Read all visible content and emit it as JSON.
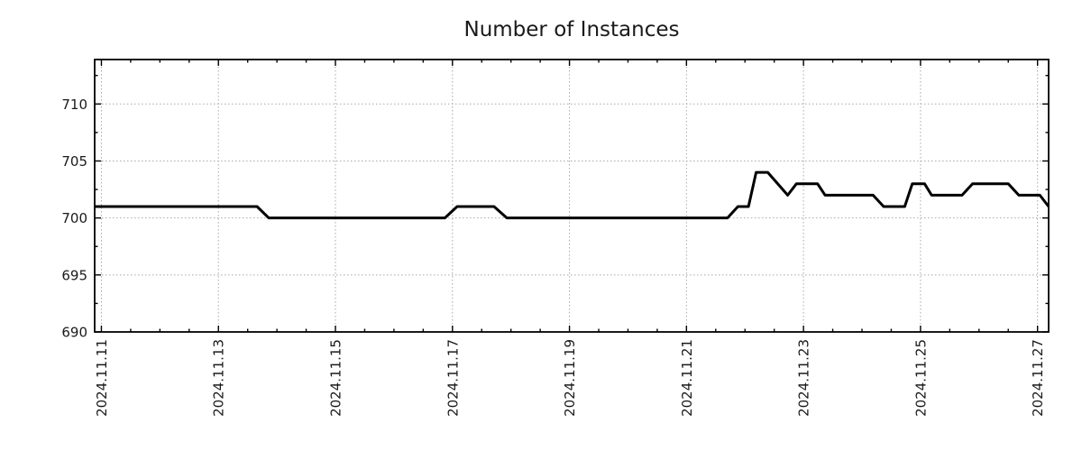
{
  "title": "Number of Instances",
  "chart_data": {
    "type": "line",
    "title": "Number of Instances",
    "line_color": "#000000",
    "grid_color": "#a8a8a8",
    "axis_color": "#000000",
    "background": "#ffffff",
    "grid": {
      "show": true,
      "style": "dotted"
    },
    "legend": {
      "show": false
    },
    "x_axis": {
      "label": "",
      "tick_labels": [
        "2024.11.11",
        "2024.11.13",
        "2024.11.15",
        "2024.11.17",
        "2024.11.19",
        "2024.11.21",
        "2024.11.23",
        "2024.11.25",
        "2024.11.27"
      ],
      "tick_positions_days": [
        0,
        2,
        4,
        6,
        8,
        10,
        12,
        14,
        16
      ],
      "minor_tick_step_days": 0.5,
      "range_days": [
        -0.115,
        16.19
      ]
    },
    "y_axis": {
      "label": "",
      "tick_labels": [
        "690",
        "695",
        "700",
        "705",
        "710"
      ],
      "tick_values": [
        690,
        695,
        700,
        705,
        710
      ],
      "minor_tick_step": 2.5,
      "range": [
        690,
        713.9
      ]
    },
    "series": [
      {
        "name": "instances",
        "x_unit": "days-since-first-tick",
        "points": [
          [
            -0.11,
            701
          ],
          [
            2.66,
            701
          ],
          [
            2.86,
            700
          ],
          [
            5.87,
            700
          ],
          [
            6.08,
            701
          ],
          [
            6.71,
            701
          ],
          [
            6.93,
            700
          ],
          [
            10.7,
            700
          ],
          [
            10.88,
            701
          ],
          [
            11.06,
            701
          ],
          [
            11.19,
            704
          ],
          [
            11.39,
            704
          ],
          [
            11.73,
            702
          ],
          [
            11.88,
            703
          ],
          [
            12.24,
            703
          ],
          [
            12.37,
            702
          ],
          [
            13.19,
            702
          ],
          [
            13.37,
            701
          ],
          [
            13.73,
            701
          ],
          [
            13.86,
            703
          ],
          [
            14.07,
            703
          ],
          [
            14.19,
            702
          ],
          [
            14.71,
            702
          ],
          [
            14.89,
            703
          ],
          [
            15.5,
            703
          ],
          [
            15.68,
            702
          ],
          [
            16.04,
            702
          ],
          [
            16.19,
            701
          ]
        ]
      }
    ]
  }
}
